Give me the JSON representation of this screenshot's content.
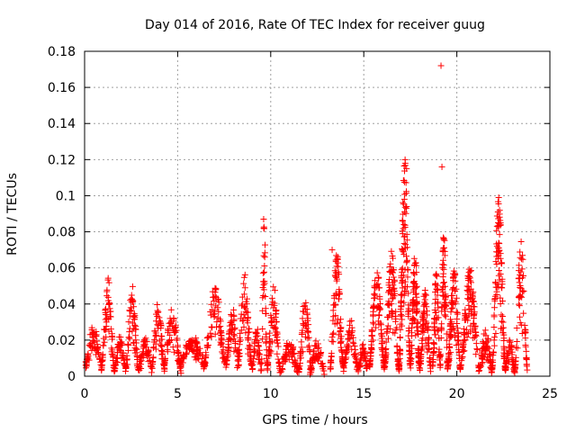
{
  "chart_data": {
    "type": "scatter",
    "title": "Day 014 of 2016, Rate Of TEC Index for receiver guug",
    "xlabel": "GPS time / hours",
    "ylabel": "ROTI / TECUs",
    "xlim": [
      0,
      25
    ],
    "ylim": [
      0,
      0.18
    ],
    "x_ticks": [
      0,
      5,
      10,
      15,
      20,
      25
    ],
    "x_tick_labels": [
      "0",
      "5",
      "10",
      "15",
      "20",
      "25"
    ],
    "y_ticks": [
      0,
      0.02,
      0.04,
      0.06,
      0.08,
      0.1,
      0.12,
      0.14,
      0.16,
      0.18
    ],
    "y_tick_labels": [
      "0",
      "0.02",
      "0.04",
      "0.06",
      "0.08",
      "0.1",
      "0.12",
      "0.14",
      "0.16",
      "0.18"
    ],
    "grid": true,
    "marker": "+",
    "series_color": "#ff0000",
    "clusters": [
      {
        "start": 0.05,
        "end": 0.9,
        "base": 0.006,
        "peak": 0.028,
        "n": 60
      },
      {
        "start": 0.9,
        "end": 1.6,
        "base": 0.004,
        "peak": 0.054,
        "n": 70
      },
      {
        "start": 1.6,
        "end": 2.2,
        "base": 0.004,
        "peak": 0.022,
        "n": 45
      },
      {
        "start": 2.2,
        "end": 2.9,
        "base": 0.003,
        "peak": 0.05,
        "n": 70
      },
      {
        "start": 2.9,
        "end": 3.6,
        "base": 0.004,
        "peak": 0.021,
        "n": 50
      },
      {
        "start": 3.6,
        "end": 4.3,
        "base": 0.004,
        "peak": 0.041,
        "n": 60
      },
      {
        "start": 4.2,
        "end": 5.2,
        "base": 0.003,
        "peak": 0.036,
        "n": 70
      },
      {
        "start": 5.1,
        "end": 6.5,
        "base": 0.006,
        "peak": 0.022,
        "n": 90
      },
      {
        "start": 6.4,
        "end": 7.6,
        "base": 0.006,
        "peak": 0.05,
        "n": 80
      },
      {
        "start": 7.6,
        "end": 8.3,
        "base": 0.006,
        "peak": 0.038,
        "n": 60
      },
      {
        "start": 8.2,
        "end": 9.0,
        "base": 0.004,
        "peak": 0.055,
        "n": 75
      },
      {
        "start": 9.0,
        "end": 9.5,
        "base": 0.003,
        "peak": 0.028,
        "n": 40
      },
      {
        "start": 9.5,
        "end": 9.8,
        "base": 0.006,
        "peak": 0.088,
        "n": 35
      },
      {
        "start": 9.8,
        "end": 10.5,
        "base": 0.004,
        "peak": 0.05,
        "n": 70
      },
      {
        "start": 10.5,
        "end": 11.5,
        "base": 0.003,
        "peak": 0.02,
        "n": 60
      },
      {
        "start": 11.5,
        "end": 12.2,
        "base": 0.003,
        "peak": 0.045,
        "n": 60
      },
      {
        "start": 12.1,
        "end": 12.9,
        "base": 0.002,
        "peak": 0.02,
        "n": 50
      },
      {
        "start": 13.2,
        "end": 13.9,
        "base": 0.005,
        "peak": 0.07,
        "n": 90
      },
      {
        "start": 13.9,
        "end": 14.7,
        "base": 0.004,
        "peak": 0.03,
        "n": 60
      },
      {
        "start": 14.7,
        "end": 15.2,
        "base": 0.003,
        "peak": 0.018,
        "n": 40
      },
      {
        "start": 15.3,
        "end": 16.1,
        "base": 0.006,
        "peak": 0.062,
        "n": 100
      },
      {
        "start": 16.1,
        "end": 16.9,
        "base": 0.004,
        "peak": 0.07,
        "n": 110
      },
      {
        "start": 16.9,
        "end": 17.5,
        "base": 0.005,
        "peak": 0.12,
        "n": 130
      },
      {
        "start": 17.5,
        "end": 18.0,
        "base": 0.005,
        "peak": 0.07,
        "n": 100
      },
      {
        "start": 18.0,
        "end": 18.6,
        "base": 0.004,
        "peak": 0.05,
        "n": 80
      },
      {
        "start": 18.7,
        "end": 19.1,
        "base": 0.006,
        "peak": 0.06,
        "n": 60
      },
      {
        "start": 19.1,
        "end": 19.5,
        "base": 0.005,
        "peak": 0.082,
        "n": 70
      },
      {
        "start": 19.5,
        "end": 20.2,
        "base": 0.004,
        "peak": 0.06,
        "n": 100
      },
      {
        "start": 20.2,
        "end": 21.2,
        "base": 0.004,
        "peak": 0.06,
        "n": 110
      },
      {
        "start": 21.2,
        "end": 21.9,
        "base": 0.003,
        "peak": 0.025,
        "n": 70
      },
      {
        "start": 21.9,
        "end": 22.6,
        "base": 0.004,
        "peak": 0.1,
        "n": 110
      },
      {
        "start": 22.6,
        "end": 23.1,
        "base": 0.004,
        "peak": 0.02,
        "n": 50
      },
      {
        "start": 23.1,
        "end": 23.8,
        "base": 0.003,
        "peak": 0.075,
        "n": 70
      }
    ],
    "extra_points": [
      {
        "x": 19.15,
        "y": 0.172
      },
      {
        "x": 19.2,
        "y": 0.116
      },
      {
        "x": 9.62,
        "y": 0.087
      },
      {
        "x": 9.68,
        "y": 0.066
      },
      {
        "x": 17.22,
        "y": 0.12
      },
      {
        "x": 17.3,
        "y": 0.115
      },
      {
        "x": 13.3,
        "y": 0.07
      },
      {
        "x": 22.25,
        "y": 0.099
      }
    ]
  }
}
